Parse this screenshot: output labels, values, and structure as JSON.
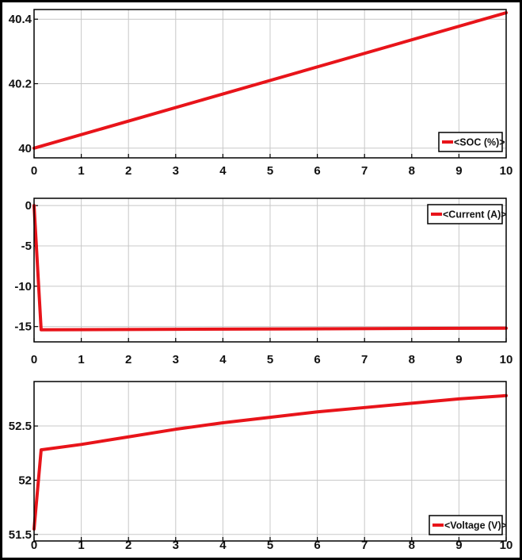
{
  "chart_data": [
    {
      "type": "line",
      "title": "",
      "xlabel": "",
      "ylabel": "",
      "xlim": [
        0,
        10
      ],
      "ylim": [
        39.97,
        40.43
      ],
      "xticks": [
        "0",
        "1",
        "2",
        "3",
        "4",
        "5",
        "6",
        "7",
        "8",
        "9",
        "10"
      ],
      "yticks": [
        {
          "value": 40,
          "label": "40"
        },
        {
          "value": 40.2,
          "label": "40.2"
        },
        {
          "value": 40.4,
          "label": "40.4"
        }
      ],
      "grid": true,
      "legend_position": "bottom-right",
      "series": [
        {
          "name": "<SOC (%)>",
          "color": "#e8141a",
          "x": [
            0,
            10
          ],
          "y": [
            40.0,
            40.42
          ]
        }
      ]
    },
    {
      "type": "line",
      "title": "",
      "xlabel": "",
      "ylabel": "",
      "xlim": [
        0,
        10
      ],
      "ylim": [
        -16.9,
        0.9
      ],
      "xticks": [
        "0",
        "1",
        "2",
        "3",
        "4",
        "5",
        "6",
        "7",
        "8",
        "9",
        "10"
      ],
      "yticks": [
        {
          "value": 0,
          "label": "0"
        },
        {
          "value": -5,
          "label": "-5"
        },
        {
          "value": -10,
          "label": "-10"
        },
        {
          "value": -15,
          "label": "-15"
        }
      ],
      "grid": true,
      "legend_position": "top-right",
      "series": [
        {
          "name": "<Current (A)>",
          "color": "#e8141a",
          "x": [
            0,
            0.15,
            10
          ],
          "y": [
            0,
            -15.4,
            -15.2
          ]
        }
      ]
    },
    {
      "type": "line",
      "title": "",
      "xlabel": "",
      "ylabel": "",
      "xlim": [
        0,
        10
      ],
      "ylim": [
        51.44,
        52.91
      ],
      "xticks": [
        "0",
        "1",
        "2",
        "3",
        "4",
        "5",
        "6",
        "7",
        "8",
        "9",
        "10"
      ],
      "yticks": [
        {
          "value": 51.5,
          "label": "51.5"
        },
        {
          "value": 52,
          "label": "52"
        },
        {
          "value": 52.5,
          "label": "52.5"
        }
      ],
      "grid": true,
      "legend_position": "bottom-right",
      "series": [
        {
          "name": "<Voltage (V)>",
          "color": "#e8141a",
          "x": [
            0,
            0.15,
            1,
            2,
            3,
            4,
            5,
            6,
            7,
            8,
            9,
            10
          ],
          "y": [
            51.55,
            52.28,
            52.33,
            52.4,
            52.47,
            52.53,
            52.58,
            52.63,
            52.67,
            52.71,
            52.75,
            52.78
          ]
        }
      ]
    }
  ]
}
